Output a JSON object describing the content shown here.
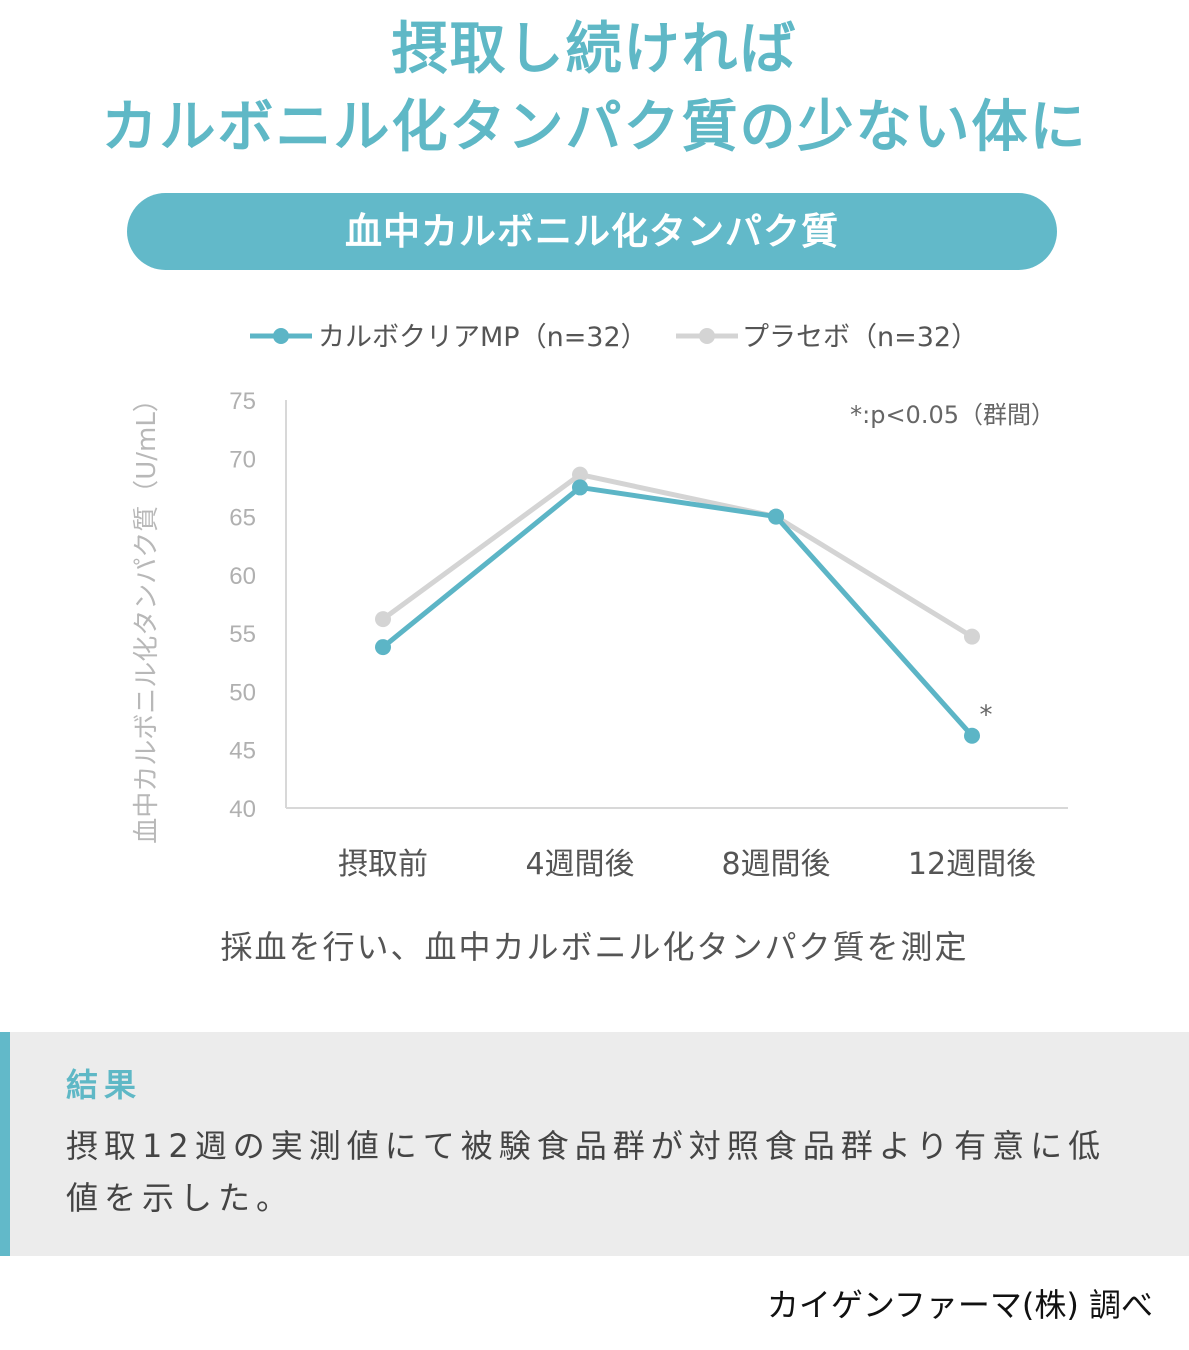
{
  "headline": {
    "line1": "摂取し続ければ",
    "line2": "カルボニル化タンパク質の少ない体に"
  },
  "section_title": "血中カルボニル化タンパク質",
  "caption": "採血を行い、血中カルボニル化タンパク質を測定",
  "result": {
    "title": "結果",
    "text": "摂取12週の実測値にて被験食品群が対照食品群より有意に低値を示した。"
  },
  "credit": "カイゲンファーマ(株) 調べ",
  "chart_data": {
    "type": "line",
    "categories": [
      "摂取前",
      "4週間後",
      "8週間後",
      "12週間後"
    ],
    "series": [
      {
        "name": "カルボクリアMP（n=32）",
        "color": "#5cb5c6",
        "values": [
          53.8,
          67.5,
          65.0,
          46.2
        ]
      },
      {
        "name": "プラセボ（n=32）",
        "color": "#d4d4d4",
        "values": [
          56.2,
          68.6,
          65.0,
          54.7
        ]
      }
    ],
    "ylabel": "血中カルボニル化タンパク質（U/mL）",
    "yticks": [
      "75",
      "70",
      "65",
      "60",
      "55",
      "50",
      "45",
      "40"
    ],
    "ylim": [
      40,
      75
    ],
    "annotation": "*:p<0.05（群間）",
    "significance_marker": "*",
    "legend_position": "top",
    "grid": false
  }
}
